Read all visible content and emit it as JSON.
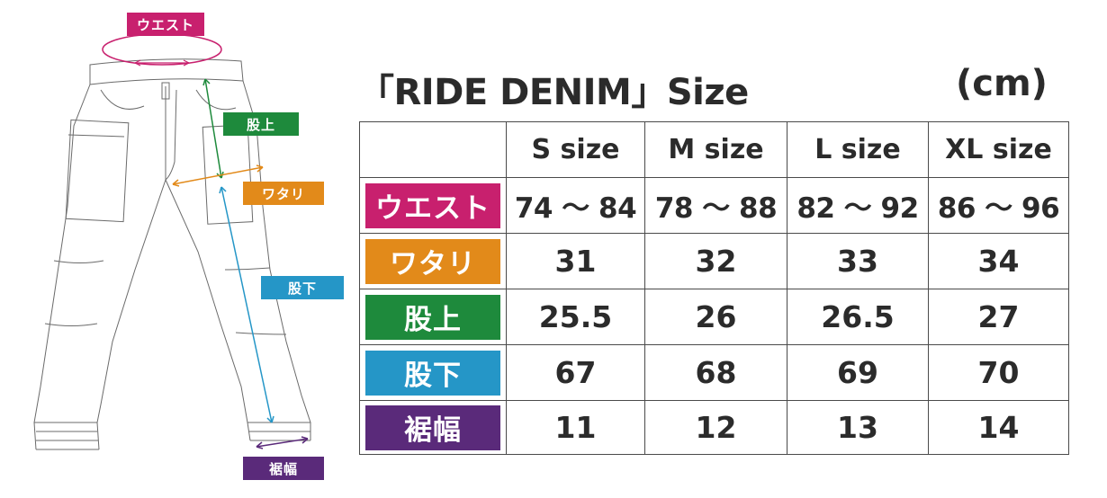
{
  "diagram": {
    "labels": {
      "waist": "ウエスト",
      "rise": "股上",
      "thigh": "ワタリ",
      "inseam": "股下",
      "hem": "裾幅"
    }
  },
  "title": "「RIDE DENIM」Size",
  "unit": "(cm)",
  "table": {
    "columns": [
      "S size",
      "M size",
      "L size",
      "XL size"
    ],
    "rows": [
      {
        "label": "ウエスト",
        "color": "#c8206e",
        "values": [
          "74 ～ 84",
          "78 ～ 88",
          "82 ～ 92",
          "86 ～ 96"
        ]
      },
      {
        "label": "ワタリ",
        "color": "#e28a1a",
        "values": [
          "31",
          "32",
          "33",
          "34"
        ]
      },
      {
        "label": "股上",
        "color": "#1e8a3c",
        "values": [
          "25.5",
          "26",
          "26.5",
          "27"
        ]
      },
      {
        "label": "股下",
        "color": "#2596c7",
        "values": [
          "67",
          "68",
          "69",
          "70"
        ]
      },
      {
        "label": "裾幅",
        "color": "#5a2a7a",
        "values": [
          "11",
          "12",
          "13",
          "14"
        ]
      }
    ]
  },
  "colors": {
    "waist": "#c8206e",
    "thigh": "#e28a1a",
    "rise": "#1e8a3c",
    "inseam": "#2596c7",
    "hem": "#5a2a7a"
  }
}
